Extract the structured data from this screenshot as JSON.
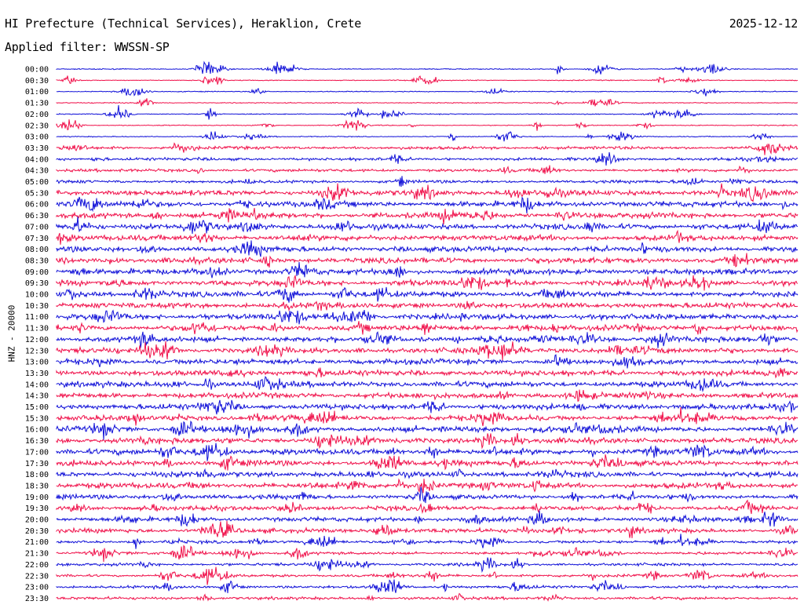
{
  "header": {
    "title": "HI Prefecture (Technical Services), Heraklion, Crete",
    "date": "2025-12-12",
    "filter": "Applied filter: WWSSN-SP"
  },
  "axis": {
    "channel_label": "HNZ - 20000"
  },
  "colors": {
    "even_trace": "#1010d8",
    "odd_trace": "#f0104a"
  },
  "traces": [
    {
      "time": "00:00"
    },
    {
      "time": "00:30"
    },
    {
      "time": "01:00"
    },
    {
      "time": "01:30"
    },
    {
      "time": "02:00"
    },
    {
      "time": "02:30"
    },
    {
      "time": "03:00"
    },
    {
      "time": "03:30"
    },
    {
      "time": "04:00"
    },
    {
      "time": "04:30"
    },
    {
      "time": "05:00"
    },
    {
      "time": "05:30"
    },
    {
      "time": "06:00"
    },
    {
      "time": "06:30"
    },
    {
      "time": "07:00"
    },
    {
      "time": "07:30"
    },
    {
      "time": "08:00"
    },
    {
      "time": "08:30"
    },
    {
      "time": "09:00"
    },
    {
      "time": "09:30"
    },
    {
      "time": "10:00"
    },
    {
      "time": "10:30"
    },
    {
      "time": "11:00"
    },
    {
      "time": "11:30"
    },
    {
      "time": "12:00"
    },
    {
      "time": "12:30"
    },
    {
      "time": "13:00"
    },
    {
      "time": "13:30"
    },
    {
      "time": "14:00"
    },
    {
      "time": "14:30"
    },
    {
      "time": "15:00"
    },
    {
      "time": "15:30"
    },
    {
      "time": "16:00"
    },
    {
      "time": "16:30"
    },
    {
      "time": "17:00"
    },
    {
      "time": "17:30"
    },
    {
      "time": "18:00"
    },
    {
      "time": "18:30"
    },
    {
      "time": "19:00"
    },
    {
      "time": "19:30"
    },
    {
      "time": "20:00"
    },
    {
      "time": "20:30"
    },
    {
      "time": "21:00"
    },
    {
      "time": "21:30"
    },
    {
      "time": "22:00"
    },
    {
      "time": "22:30"
    },
    {
      "time": "23:00"
    },
    {
      "time": "23:30"
    }
  ]
}
